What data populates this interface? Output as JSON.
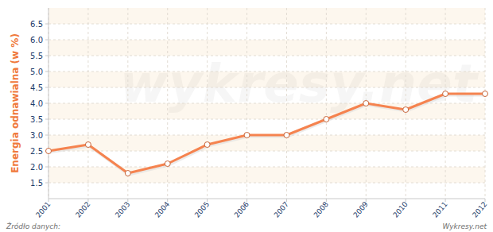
{
  "chart_data": {
    "type": "line",
    "y_label": "Energia odnawialna (w %)",
    "source": "Źródło danych:",
    "credit": "Wykresy.net",
    "watermark": "wykresy.net",
    "x": [
      2001,
      2002,
      2003,
      2004,
      2005,
      2006,
      2007,
      2008,
      2009,
      2010,
      2011,
      2012
    ],
    "values": [
      2.5,
      2.7,
      1.8,
      2.1,
      2.7,
      3.0,
      3.0,
      3.5,
      4.0,
      3.8,
      4.3,
      4.3
    ],
    "color": "#f5834f",
    "marker": "circle",
    "xlim": [
      2001,
      2012
    ],
    "xticks": [
      2001,
      2002,
      2003,
      2004,
      2005,
      2006,
      2007,
      2008,
      2009,
      2010,
      2011,
      2012
    ],
    "ylim": [
      1,
      7
    ],
    "yticks": [
      1.5,
      {
        "value": 2,
        "label": "2.0"
      },
      2.5,
      {
        "value": 3,
        "label": "3.0"
      },
      3.5,
      {
        "value": 4,
        "label": "4.0"
      },
      4.5,
      {
        "value": 5,
        "label": "5.0"
      },
      5.5,
      {
        "value": 6,
        "label": "6.0"
      },
      6.5
    ],
    "grid": true
  }
}
